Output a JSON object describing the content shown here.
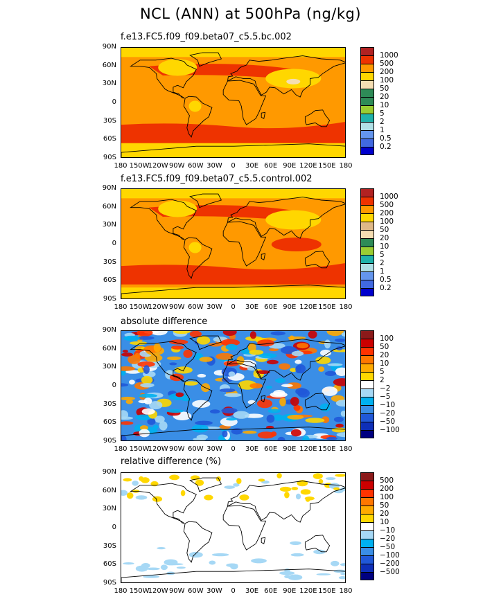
{
  "title": "NCL (ANN) at 500hPa (ng/kg)",
  "axes": {
    "lat_labels": [
      "90N",
      "60N",
      "30N",
      "0",
      "30S",
      "60S",
      "90S"
    ],
    "lon_labels": [
      "180",
      "150W",
      "120W",
      "90W",
      "60W",
      "30W",
      "0",
      "30E",
      "60E",
      "90E",
      "120E",
      "150E",
      "180"
    ]
  },
  "panels": [
    {
      "title": "f.e13.FC5.f09_f09.beta07_c5.5.bc.002",
      "style": "bc",
      "colorbar": {
        "labels": [
          "1000",
          "500",
          "200",
          "100",
          "50",
          "20",
          "10",
          "5",
          "2",
          "1",
          "0.5",
          "0.2"
        ],
        "colors": [
          "#b22222",
          "#ee3300",
          "#ff9900",
          "#ffd700",
          "#f5deb3",
          "#2e8b57",
          "#2e8b57",
          "#9acd32",
          "#20b2aa",
          "#b0e0e6",
          "#6495ed",
          "#4169e1",
          "#0000cd"
        ]
      }
    },
    {
      "title": "f.e13.FC5.f09_f09.beta07_c5.5.control.002",
      "style": "control",
      "colorbar": {
        "labels": [
          "1000",
          "500",
          "200",
          "100",
          "50",
          "20",
          "10",
          "5",
          "2",
          "1",
          "0.5",
          "0.2"
        ],
        "colors": [
          "#b22222",
          "#ee3300",
          "#ff9900",
          "#ffd700",
          "#deb887",
          "#f5deb3",
          "#2e8b57",
          "#9acd32",
          "#20b2aa",
          "#b0e0e6",
          "#6495ed",
          "#4169e1",
          "#0000cd"
        ]
      }
    },
    {
      "title": "absolute difference",
      "style": "absdiff",
      "colorbar": {
        "labels": [
          "100",
          "50",
          "20",
          "10",
          "5",
          "2",
          "−2",
          "−5",
          "−10",
          "−20",
          "−50",
          "−100"
        ],
        "colors": [
          "#8b1a1a",
          "#cc0000",
          "#ff3300",
          "#ff7700",
          "#ffaa00",
          "#ffd700",
          "#ffffff",
          "#a6d8f5",
          "#00b0f0",
          "#3a8ee6",
          "#2058d8",
          "#0e2fb8",
          "#000080"
        ]
      }
    },
    {
      "title": "relative difference (%)",
      "style": "reldiff",
      "colorbar": {
        "labels": [
          "500",
          "200",
          "100",
          "50",
          "20",
          "10",
          "−10",
          "−20",
          "−50",
          "−100",
          "−200",
          "−500"
        ],
        "colors": [
          "#8b1a1a",
          "#cc0000",
          "#ff3300",
          "#ff7700",
          "#ffaa00",
          "#ffd700",
          "#ffffff",
          "#a6d8f5",
          "#00b0f0",
          "#3a8ee6",
          "#2058d8",
          "#0e2fb8",
          "#000080"
        ]
      }
    }
  ]
}
